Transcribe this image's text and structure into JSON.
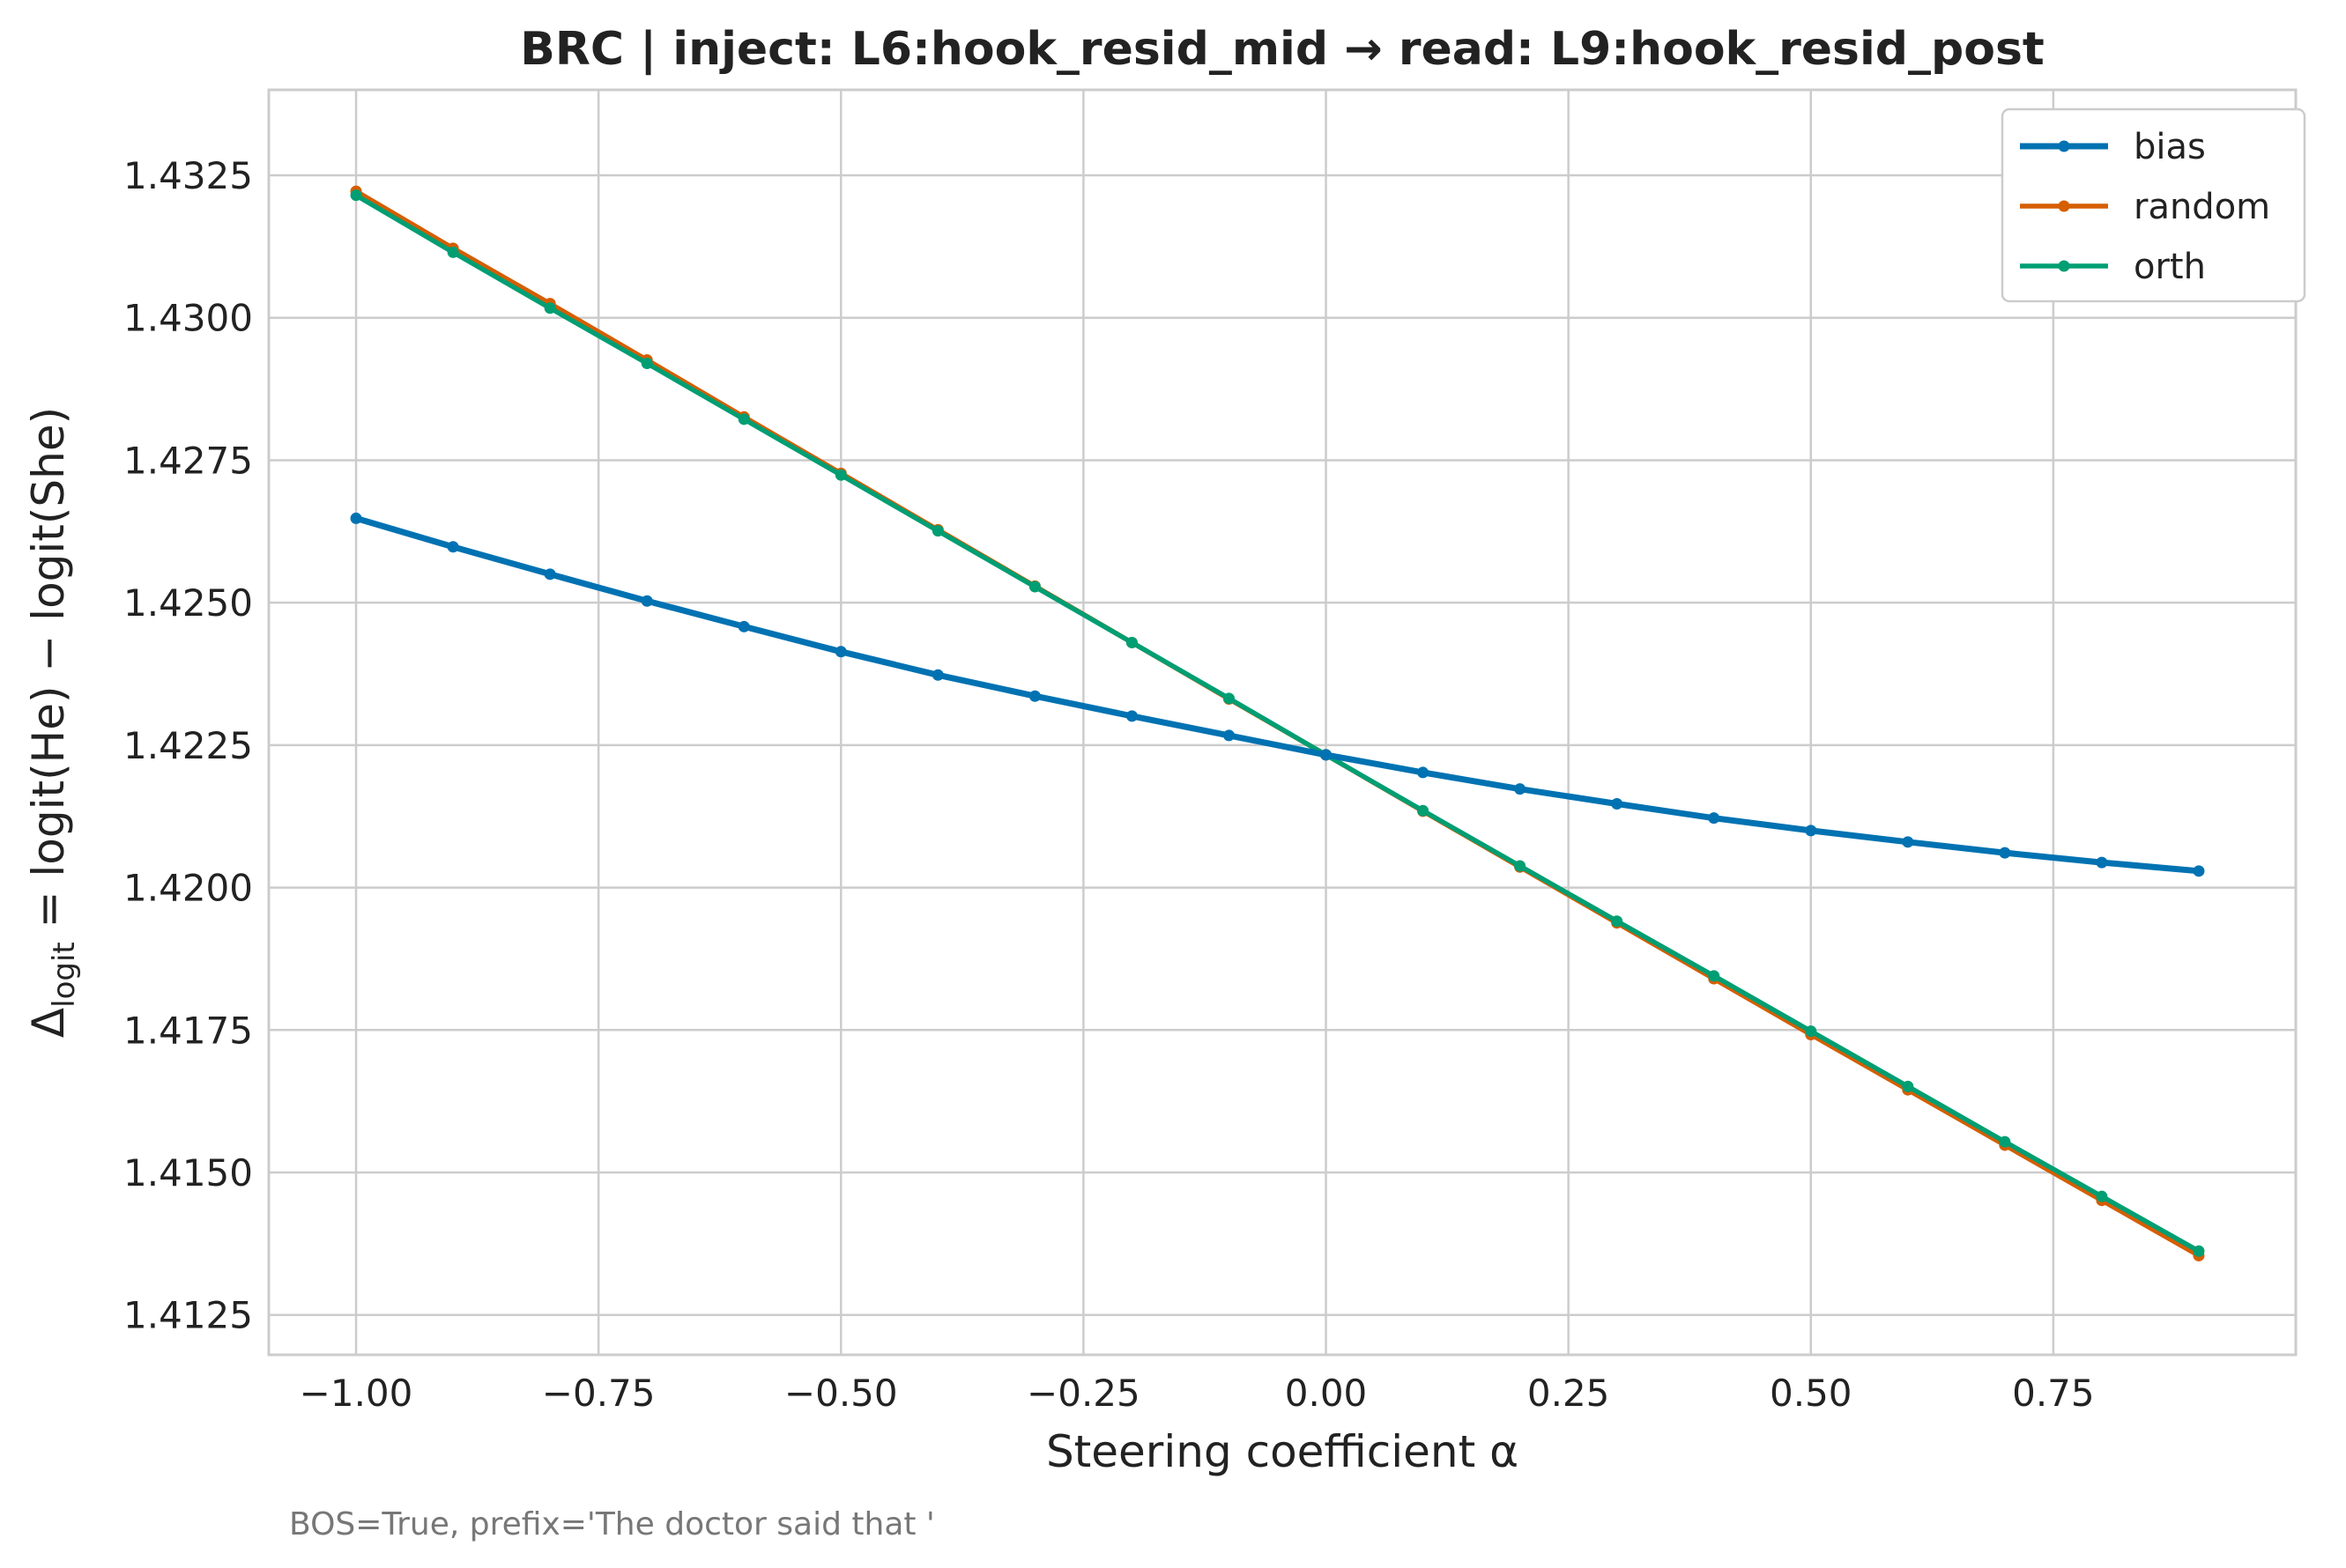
{
  "chart_data": {
    "type": "line",
    "title": "BRC | inject: L6:hook_resid_mid → read: L9:hook_resid_post",
    "xlabel": "Steering coefficient α",
    "ylabel": "Δlogit = logit(He) − logit(She)",
    "ylabel_parts": {
      "delta": "Δ",
      "subscript": "logit",
      "rest": " = logit(He) − logit(She)"
    },
    "caption": "BOS=True, prefix='The doctor said that '",
    "xlim": [
      -1.09,
      1.0
    ],
    "ylim": [
      1.4118,
      1.434
    ],
    "x_ticks": [
      -1.0,
      -0.75,
      -0.5,
      -0.25,
      0.0,
      0.25,
      0.5,
      0.75
    ],
    "x_tick_labels": [
      "−1.00",
      "−0.75",
      "−0.50",
      "−0.25",
      "0.00",
      "0.25",
      "0.50",
      "0.75"
    ],
    "y_ticks": [
      1.4125,
      1.415,
      1.4175,
      1.42,
      1.4225,
      1.425,
      1.4275,
      1.43,
      1.4325
    ],
    "y_tick_labels": [
      "1.4125",
      "1.4150",
      "1.4175",
      "1.4200",
      "1.4225",
      "1.4250",
      "1.4275",
      "1.4300",
      "1.4325"
    ],
    "grid": true,
    "legend_position": "top-right",
    "x": [
      -1.0,
      -0.9,
      -0.8,
      -0.7,
      -0.6,
      -0.5,
      -0.4,
      -0.3,
      -0.2,
      -0.1,
      0.0,
      0.1,
      0.2,
      0.3,
      0.4,
      0.5,
      0.6,
      0.7,
      0.8,
      0.9
    ],
    "series": [
      {
        "name": "random",
        "color": "#d55e00",
        "values": [
          1.43222,
          1.43122,
          1.43025,
          1.42926,
          1.42826,
          1.42727,
          1.42628,
          1.42529,
          1.4243,
          1.42331,
          1.42233,
          1.42134,
          1.42036,
          1.41938,
          1.4184,
          1.41742,
          1.41645,
          1.41548,
          1.41451,
          1.41354
        ]
      },
      {
        "name": "orth",
        "color": "#009e73",
        "values": [
          1.43215,
          1.43115,
          1.43017,
          1.4292,
          1.42822,
          1.42724,
          1.42626,
          1.42528,
          1.4243,
          1.42332,
          1.42233,
          1.42135,
          1.42038,
          1.41941,
          1.41845,
          1.41748,
          1.41651,
          1.41554,
          1.41458,
          1.41362
        ]
      },
      {
        "name": "bias",
        "color": "#0072b2",
        "values": [
          1.42648,
          1.42598,
          1.4255,
          1.42503,
          1.42458,
          1.42414,
          1.42373,
          1.42336,
          1.42301,
          1.42267,
          1.42233,
          1.42202,
          1.42173,
          1.42147,
          1.42122,
          1.421,
          1.4208,
          1.42061,
          1.42044,
          1.42029
        ]
      }
    ],
    "legend_order": [
      "bias",
      "random",
      "orth"
    ]
  }
}
